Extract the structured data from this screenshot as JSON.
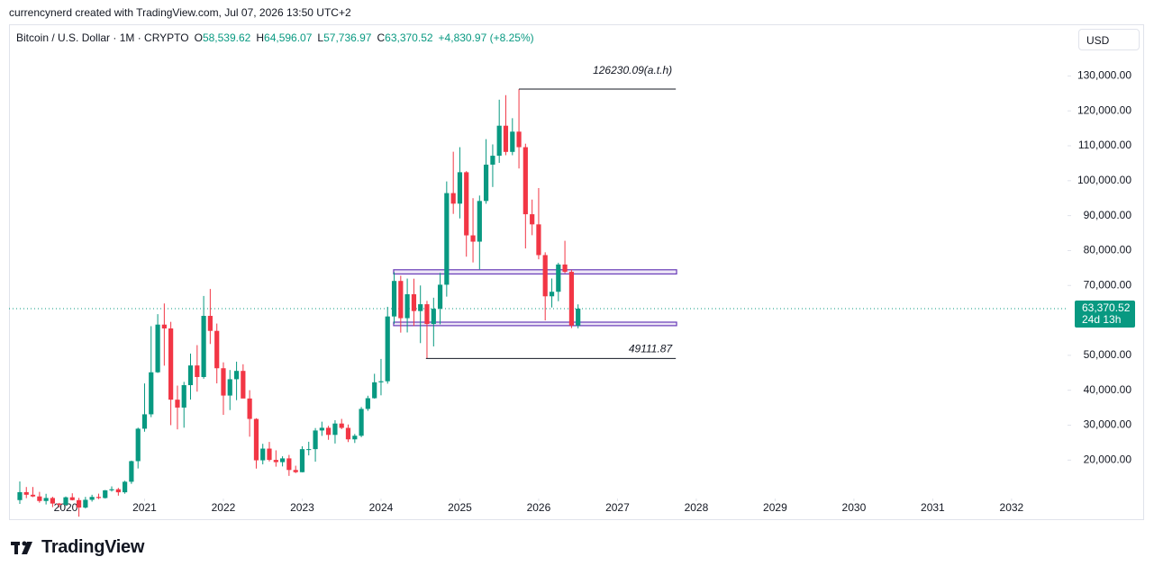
{
  "chart_data": {
    "type": "candlestick",
    "header": "currencynerd created with TradingView.com, Jul 07, 2026 13:50 UTC+2",
    "title": "Bitcoin / U.S. Dollar · 1M · CRYPTO",
    "legend": [
      {
        "label": "O",
        "value": "58,539.62"
      },
      {
        "label": "H",
        "value": "64,596.07"
      },
      {
        "label": "L",
        "value": "57,736.97"
      },
      {
        "label": "C",
        "value": "63,370.52"
      }
    ],
    "change": "+4,830.97 (+8.25%)",
    "currency": "USD",
    "brand": "TradingView",
    "up_color": "#089981",
    "down_color": "#f23645",
    "x": [
      2019.417,
      2019.5,
      2019.583,
      2019.667,
      2019.75,
      2019.833,
      2019.917,
      2020,
      2020.083,
      2020.167,
      2020.25,
      2020.333,
      2020.417,
      2020.5,
      2020.583,
      2020.667,
      2020.75,
      2020.833,
      2020.917,
      2021,
      2021.083,
      2021.167,
      2021.25,
      2021.333,
      2021.417,
      2021.5,
      2021.583,
      2021.667,
      2021.75,
      2021.833,
      2021.917,
      2022,
      2022.083,
      2022.167,
      2022.25,
      2022.333,
      2022.417,
      2022.5,
      2022.583,
      2022.667,
      2022.75,
      2022.833,
      2022.917,
      2023,
      2023.083,
      2023.167,
      2023.25,
      2023.333,
      2023.417,
      2023.5,
      2023.583,
      2023.667,
      2023.75,
      2023.833,
      2023.917,
      2024,
      2024.083,
      2024.167,
      2024.25,
      2024.333,
      2024.417,
      2024.5,
      2024.583,
      2024.667,
      2024.75,
      2024.833,
      2024.917,
      2025,
      2025.083,
      2025.167,
      2025.25,
      2025.333,
      2025.417,
      2025.5,
      2025.583,
      2025.667,
      2025.75,
      2025.833,
      2025.917,
      2026,
      2026.083,
      2026.167,
      2026.25,
      2026.333,
      2026.417,
      2026.5
    ],
    "open": [
      8550,
      10820,
      10080,
      9590,
      8290,
      9150,
      7560,
      7190,
      9350,
      8540,
      6410,
      8630,
      9450,
      9140,
      11350,
      11650,
      10780,
      13800,
      19700,
      28990,
      33110,
      45140,
      58800,
      57700,
      37300,
      35040,
      41460,
      47100,
      43790,
      61300,
      57000,
      46300,
      38480,
      43160,
      45540,
      37640,
      31790,
      19940,
      23290,
      20050,
      19420,
      20490,
      17170,
      16540,
      23130,
      23140,
      28480,
      29250,
      27220,
      30470,
      29230,
      25940,
      26970,
      34660,
      37720,
      42280,
      42580,
      61130,
      71300,
      60640,
      67490,
      62680,
      64630,
      58970,
      63330,
      70220,
      96450,
      93430,
      102430,
      84350,
      82550,
      94200,
      104600,
      107150,
      115750,
      108250,
      114050,
      109600,
      90400,
      87500,
      78700,
      66900,
      68200,
      76000,
      73900,
      58539.62
    ],
    "high": [
      13880,
      12300,
      12300,
      10900,
      10350,
      9510,
      7740,
      9580,
      10500,
      9190,
      9470,
      10070,
      10390,
      11440,
      12470,
      12050,
      14100,
      19860,
      29300,
      41950,
      58350,
      61790,
      64850,
      59590,
      41330,
      42400,
      50500,
      52920,
      67000,
      69000,
      59100,
      47990,
      45800,
      48190,
      47440,
      40020,
      31990,
      24670,
      25210,
      22800,
      21100,
      21480,
      18390,
      23960,
      25250,
      29180,
      31000,
      29820,
      31430,
      31800,
      30200,
      27490,
      35200,
      38430,
      44720,
      48970,
      63900,
      73800,
      72800,
      71980,
      71950,
      70000,
      65600,
      66500,
      73600,
      99800,
      108300,
      109600,
      102750,
      95000,
      95750,
      111900,
      110400,
      123200,
      124500,
      117900,
      126230.09,
      110600,
      94600,
      97900,
      79500,
      72000,
      76500,
      82800,
      74500,
      64596.07
    ],
    "low": [
      7450,
      9100,
      9400,
      7800,
      7300,
      6530,
      6430,
      6870,
      8450,
      3800,
      6150,
      8110,
      8830,
      8990,
      10980,
      9820,
      10370,
      13200,
      17600,
      28130,
      32300,
      44960,
      47040,
      30000,
      28800,
      29280,
      37330,
      39600,
      43290,
      53250,
      41970,
      32950,
      34320,
      37160,
      37700,
      26700,
      17570,
      18780,
      19600,
      18120,
      18190,
      15480,
      16270,
      16500,
      21350,
      19550,
      26940,
      25810,
      24750,
      28860,
      25160,
      24900,
      26560,
      34100,
      37600,
      38550,
      41880,
      59050,
      56500,
      56550,
      58400,
      53500,
      49111.87,
      52550,
      58870,
      66800,
      90500,
      89200,
      78250,
      76600,
      74600,
      93400,
      98200,
      105100,
      107300,
      107300,
      103500,
      80600,
      84400,
      77500,
      60000,
      63700,
      65500,
      73500,
      57800,
      57736.97
    ],
    "close": [
      10820,
      10080,
      9590,
      8290,
      9150,
      7560,
      7190,
      9350,
      8540,
      6410,
      8630,
      9450,
      9140,
      11350,
      11650,
      10780,
      13800,
      19700,
      28990,
      33110,
      45140,
      58800,
      57700,
      37300,
      35040,
      41460,
      47100,
      43790,
      61300,
      57000,
      46300,
      38480,
      43160,
      45540,
      37640,
      31790,
      19940,
      23290,
      20050,
      19420,
      20490,
      17170,
      16540,
      23130,
      23140,
      28480,
      29250,
      27220,
      30470,
      29230,
      25940,
      26970,
      34660,
      37720,
      42280,
      42580,
      61130,
      71300,
      60640,
      67490,
      62680,
      64630,
      58970,
      63330,
      70220,
      96450,
      93430,
      102430,
      84350,
      82550,
      94200,
      104600,
      107150,
      115750,
      108250,
      114050,
      109600,
      90400,
      87500,
      78700,
      66900,
      68200,
      76000,
      73900,
      58540,
      63370.52
    ],
    "xlim": [
      2019.28,
      2032.71
    ],
    "xticks": [
      2020,
      2021,
      2022,
      2023,
      2024,
      2025,
      2026,
      2027,
      2028,
      2029,
      2030,
      2031,
      2032
    ],
    "ylim": [
      9000,
      143500
    ],
    "yticks": [
      {
        "value": 20000,
        "label": "20,000.00"
      },
      {
        "value": 30000,
        "label": "30,000.00"
      },
      {
        "value": 40000,
        "label": "40,000.00"
      },
      {
        "value": 50000,
        "label": "50,000.00"
      },
      {
        "value": 70000,
        "label": "70,000.00"
      },
      {
        "value": 80000,
        "label": "80,000.00"
      },
      {
        "value": 90000,
        "label": "90,000.00"
      },
      {
        "value": 100000,
        "label": "100,000.00"
      },
      {
        "value": 110000,
        "label": "110,000.00"
      },
      {
        "value": 120000,
        "label": "120,000.00"
      },
      {
        "value": 130000,
        "label": "130,000.00"
      }
    ],
    "grid": false,
    "annotations": [
      {
        "value": 126230.09,
        "label": "126230.09(a.t.h)",
        "x_start": 2025.75,
        "x_end": 2027.74
      },
      {
        "value": 49111.87,
        "label": "49111.87",
        "x_start": 2024.57,
        "x_end": 2027.74
      }
    ],
    "zones": [
      {
        "top": 74500,
        "bottom": 73300,
        "x_start": 2024.16,
        "x_end": 2027.75,
        "color": "#673ab7"
      },
      {
        "top": 59500,
        "bottom": 58500,
        "x_start": 2024.16,
        "x_end": 2027.75,
        "color": "#673ab7"
      }
    ],
    "price_label": {
      "value": 63370.52,
      "label": "63,370.52",
      "countdown": "24d 13h"
    }
  }
}
